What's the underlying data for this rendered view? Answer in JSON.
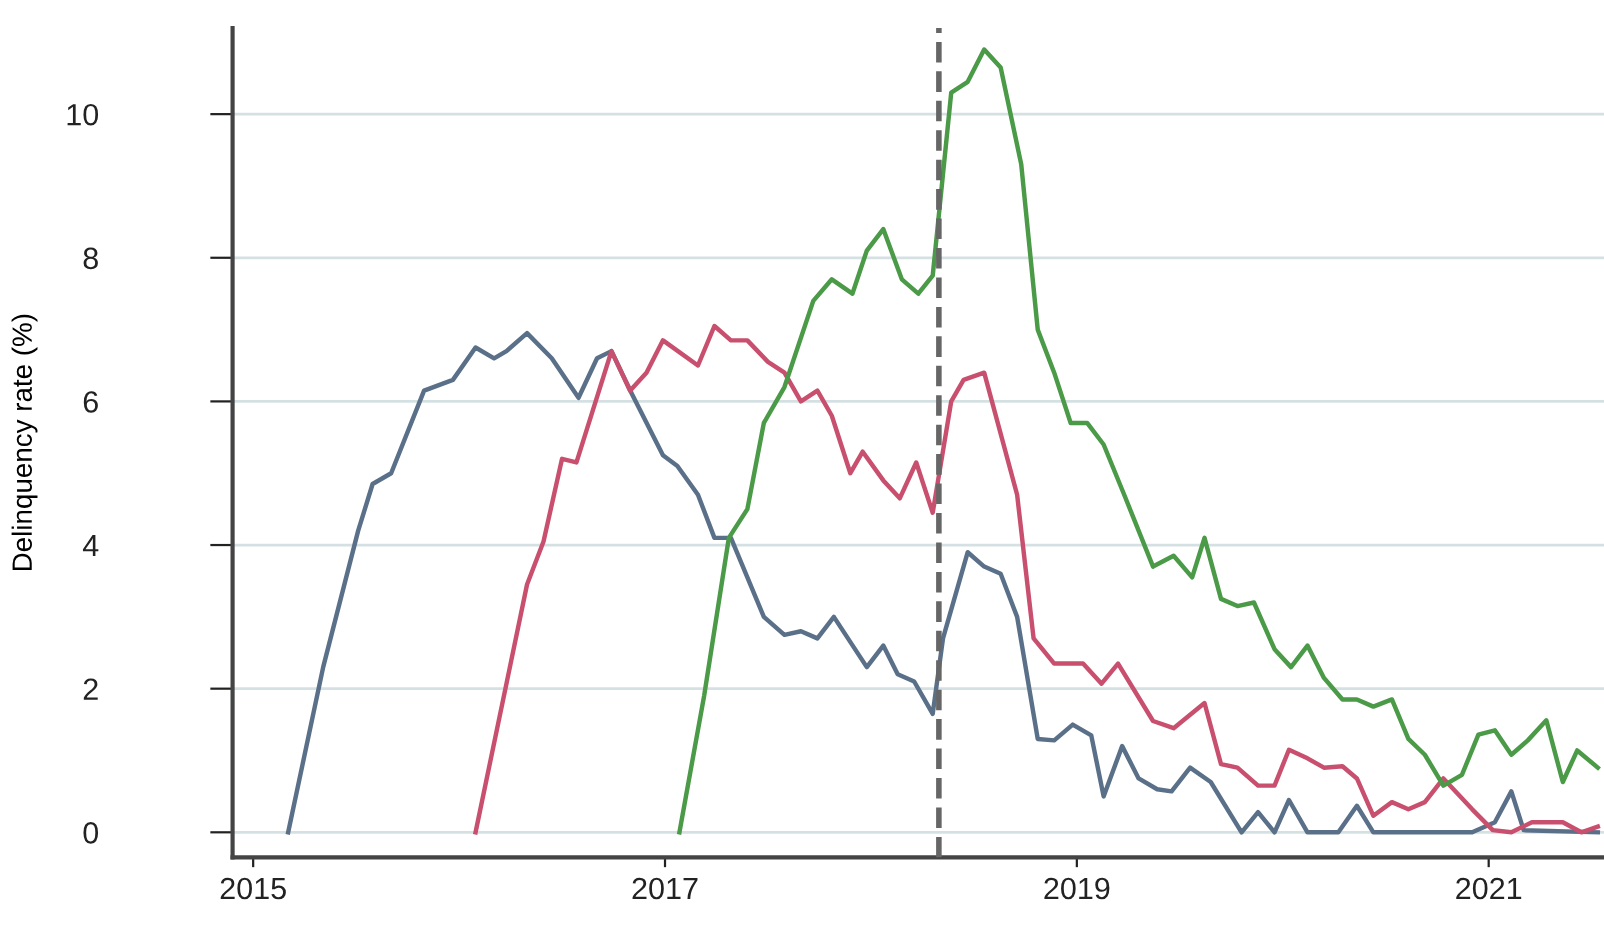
{
  "chart_data": {
    "type": "line",
    "ylabel": "Delinquency rate (%)",
    "xlim": [
      2014.9,
      2021.56
    ],
    "xticks": [
      2015,
      2017,
      2019,
      2021
    ],
    "ylim": [
      -0.35,
      11.2
    ],
    "yticks": [
      0,
      2,
      4,
      6,
      8,
      10
    ],
    "grid": "y",
    "line_style": "solid",
    "marker": "none",
    "ref_lines": [
      {
        "axis": "x",
        "value": 2018.33,
        "color": "#666666",
        "line_style": "dashed"
      }
    ],
    "series": [
      {
        "color": "#5a7089",
        "x": [
          2015.17,
          2015.34,
          2015.51,
          2015.58,
          2015.67,
          2015.83,
          2015.97,
          2016.08,
          2016.17,
          2016.23,
          2016.33,
          2016.45,
          2016.58,
          2016.67,
          2016.74,
          2016.84,
          2016.99,
          2017.06,
          2017.16,
          2017.24,
          2017.32,
          2017.48,
          2017.58,
          2017.66,
          2017.74,
          2017.82,
          2017.98,
          2018.06,
          2018.13,
          2018.21,
          2018.3,
          2018.35,
          2018.47,
          2018.55,
          2018.63,
          2018.71,
          2018.81,
          2018.89,
          2018.98,
          2019.07,
          2019.13,
          2019.22,
          2019.3,
          2019.39,
          2019.46,
          2019.55,
          2019.65,
          2019.8,
          2019.88,
          2019.96,
          2020.03,
          2020.12,
          2020.27,
          2020.36,
          2020.44,
          2020.92,
          2021.03,
          2021.11,
          2021.17,
          2021.53
        ],
        "values": [
          0,
          2.3,
          4.2,
          4.85,
          5.0,
          6.15,
          6.3,
          6.75,
          6.6,
          6.7,
          6.95,
          6.6,
          6.05,
          6.6,
          6.7,
          6.1,
          5.25,
          5.1,
          4.7,
          4.1,
          4.1,
          3.0,
          2.75,
          2.8,
          2.7,
          3.0,
          2.3,
          2.6,
          2.2,
          2.1,
          1.65,
          2.7,
          3.9,
          3.7,
          3.6,
          3.0,
          1.3,
          1.28,
          1.5,
          1.35,
          0.5,
          1.2,
          0.75,
          0.6,
          0.57,
          0.9,
          0.7,
          0,
          0.28,
          0,
          0.45,
          0,
          0,
          0.37,
          0,
          0,
          0.14,
          0.57,
          0.03,
          0
        ]
      },
      {
        "color": "#c8506e",
        "x": [
          2016.08,
          2016.33,
          2016.41,
          2016.5,
          2016.57,
          2016.74,
          2016.83,
          2016.91,
          2016.99,
          2017.16,
          2017.24,
          2017.32,
          2017.4,
          2017.5,
          2017.58,
          2017.66,
          2017.74,
          2017.81,
          2017.9,
          2017.96,
          2018.06,
          2018.14,
          2018.22,
          2018.3,
          2018.39,
          2018.45,
          2018.55,
          2018.71,
          2018.79,
          2018.89,
          2019.03,
          2019.12,
          2019.2,
          2019.37,
          2019.47,
          2019.62,
          2019.7,
          2019.78,
          2019.88,
          2019.96,
          2020.03,
          2020.12,
          2020.2,
          2020.29,
          2020.36,
          2020.44,
          2020.53,
          2020.61,
          2020.69,
          2020.78,
          2020.92,
          2021.02,
          2021.11,
          2021.21,
          2021.36,
          2021.45,
          2021.53
        ],
        "values": [
          0,
          3.45,
          4.05,
          5.2,
          5.15,
          6.7,
          6.15,
          6.4,
          6.85,
          6.5,
          7.05,
          6.85,
          6.85,
          6.55,
          6.4,
          6.0,
          6.15,
          5.8,
          5.0,
          5.3,
          4.9,
          4.65,
          5.15,
          4.45,
          6.0,
          6.3,
          6.4,
          4.7,
          2.7,
          2.35,
          2.35,
          2.07,
          2.35,
          1.55,
          1.45,
          1.8,
          0.95,
          0.9,
          0.65,
          0.65,
          1.15,
          1.03,
          0.9,
          0.92,
          0.75,
          0.23,
          0.42,
          0.32,
          0.42,
          0.75,
          0.32,
          0.03,
          0,
          0.14,
          0.14,
          0,
          0.08
        ]
      },
      {
        "color": "#4a9a48",
        "x": [
          2017.07,
          2017.19,
          2017.31,
          2017.4,
          2017.48,
          2017.58,
          2017.72,
          2017.81,
          2017.91,
          2017.98,
          2018.06,
          2018.15,
          2018.23,
          2018.3,
          2018.39,
          2018.47,
          2018.55,
          2018.63,
          2018.73,
          2018.81,
          2018.89,
          2018.97,
          2019.05,
          2019.13,
          2019.23,
          2019.37,
          2019.47,
          2019.56,
          2019.62,
          2019.7,
          2019.78,
          2019.86,
          2019.96,
          2020.04,
          2020.12,
          2020.2,
          2020.29,
          2020.36,
          2020.44,
          2020.53,
          2020.61,
          2020.69,
          2020.78,
          2020.87,
          2020.95,
          2021.03,
          2021.11,
          2021.19,
          2021.28,
          2021.36,
          2021.43,
          2021.53
        ],
        "values": [
          0,
          1.9,
          4.1,
          4.5,
          5.7,
          6.2,
          7.4,
          7.7,
          7.5,
          8.1,
          8.4,
          7.7,
          7.5,
          7.75,
          10.3,
          10.45,
          10.9,
          10.65,
          9.3,
          7.0,
          6.4,
          5.7,
          5.7,
          5.4,
          4.7,
          3.7,
          3.85,
          3.55,
          4.1,
          3.25,
          3.15,
          3.2,
          2.55,
          2.3,
          2.6,
          2.15,
          1.85,
          1.85,
          1.75,
          1.85,
          1.3,
          1.08,
          0.65,
          0.8,
          1.36,
          1.42,
          1.08,
          1.28,
          1.56,
          0.7,
          1.14,
          0.9
        ]
      }
    ]
  }
}
